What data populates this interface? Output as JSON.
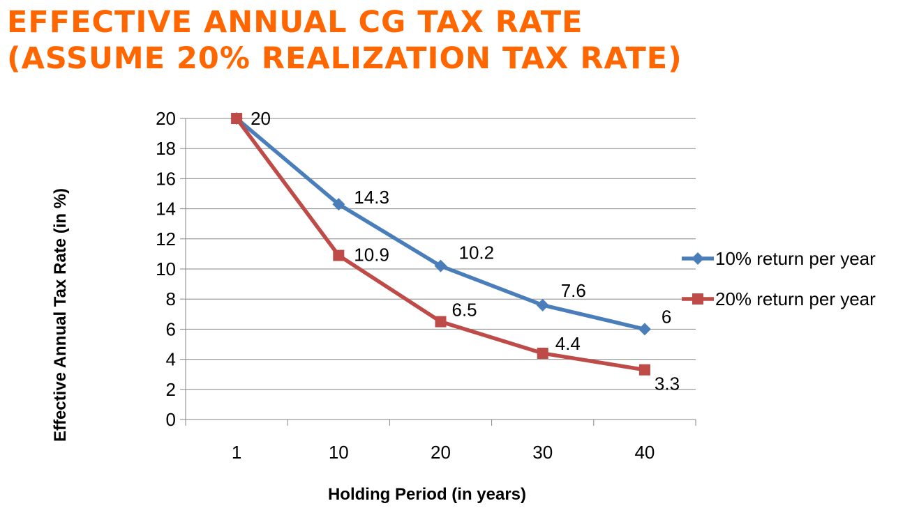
{
  "title_lines": [
    "EFFECTIVE ANNUAL CG TAX RATE",
    "(ASSUME 20% REALIZATION TAX RATE)"
  ],
  "chart_data": {
    "type": "line",
    "categories": [
      "1",
      "10",
      "20",
      "30",
      "40"
    ],
    "series": [
      {
        "name": "10% return per year",
        "values": [
          20,
          14.3,
          10.2,
          7.6,
          6
        ],
        "labels": [
          "20",
          "14.3",
          "10.2",
          "7.6",
          "6"
        ],
        "color": "#4a7ebb",
        "marker": "diamond"
      },
      {
        "name": "20% return per year",
        "values": [
          20,
          10.9,
          6.5,
          4.4,
          3.3
        ],
        "labels": [
          "20",
          "10.9",
          "6.5",
          "4.4",
          "3.3"
        ],
        "color": "#be4b48",
        "marker": "square"
      }
    ],
    "xlabel": "Holding Period (in years)",
    "ylabel": "Effective Annual Tax Rate (in %)",
    "ylim": [
      0,
      20
    ],
    "yticks": [
      "0",
      "2",
      "4",
      "6",
      "8",
      "10",
      "12",
      "14",
      "16",
      "18",
      "20"
    ],
    "grid": true,
    "legend_position": "right"
  }
}
